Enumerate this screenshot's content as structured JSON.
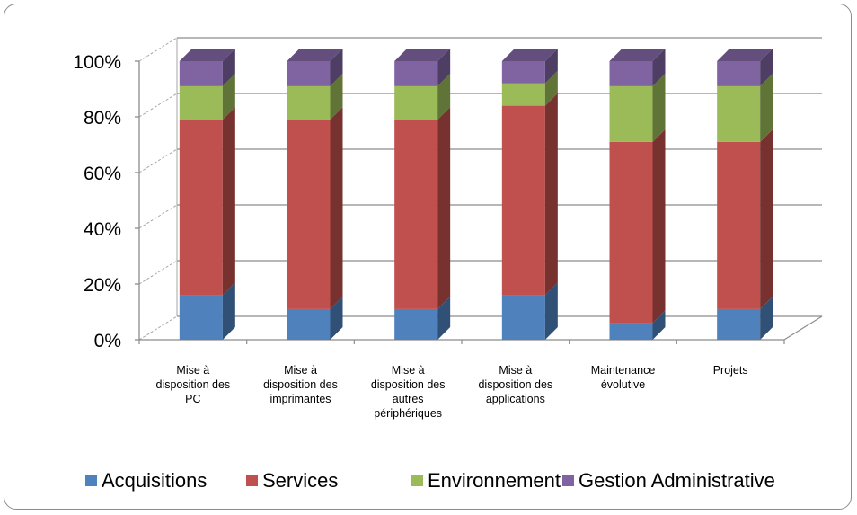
{
  "chart_data": {
    "type": "bar",
    "stacked": true,
    "percent": true,
    "categories": [
      [
        "Mise à",
        "disposition des",
        "PC"
      ],
      [
        "Mise à",
        "disposition des",
        "imprimantes"
      ],
      [
        "Mise à",
        "disposition des",
        "autres",
        "périphériques"
      ],
      [
        "Mise à",
        "disposition des",
        "applications"
      ],
      [
        "Maintenance",
        "évolutive"
      ],
      [
        "Projets"
      ]
    ],
    "series": [
      {
        "name": "Acquisitions",
        "color": "#4f81bd",
        "values": [
          16,
          11,
          11,
          16,
          6,
          11
        ]
      },
      {
        "name": "Services",
        "color": "#c0504d",
        "values": [
          63,
          68,
          68,
          68,
          65,
          60
        ]
      },
      {
        "name": "Environnement",
        "color": "#9bbb59",
        "values": [
          12,
          12,
          12,
          8,
          20,
          20
        ]
      },
      {
        "name": "Gestion Administrative",
        "color": "#8064a2",
        "values": [
          9,
          9,
          9,
          8,
          9,
          9
        ]
      }
    ],
    "y_ticks": [
      "0%",
      "20%",
      "40%",
      "60%",
      "80%",
      "100%"
    ],
    "ylim": [
      0,
      100
    ],
    "grid": true,
    "legend_position": "bottom"
  }
}
